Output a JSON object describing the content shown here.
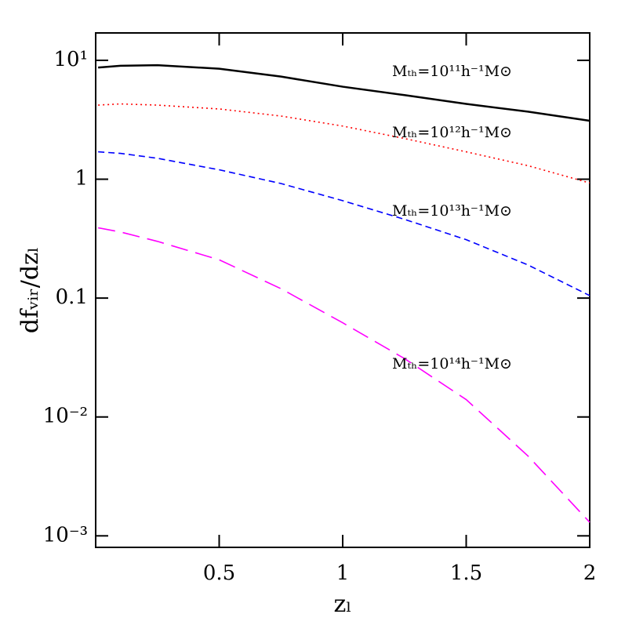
{
  "chart_data": {
    "type": "line",
    "xlabel": "zₗ",
    "ylabel": "dfᵥᵢᵣ/dzₗ",
    "x": [
      0.01,
      0.1,
      0.25,
      0.5,
      0.75,
      1,
      1.25,
      1.5,
      1.75,
      2
    ],
    "series": [
      {
        "name": "Mₜₕ=10¹¹h⁻¹M⊙",
        "color": "#000000",
        "style": "solid",
        "values": [
          8.7,
          9.0,
          9.1,
          8.5,
          7.3,
          6.0,
          5.1,
          4.3,
          3.7,
          3.1
        ]
      },
      {
        "name": "Mₜₕ=10¹²h⁻¹M⊙",
        "color": "#ff0000",
        "style": "dotted",
        "values": [
          4.2,
          4.3,
          4.2,
          3.9,
          3.4,
          2.8,
          2.2,
          1.7,
          1.3,
          0.93
        ]
      },
      {
        "name": "Mₜₕ=10¹³h⁻¹M⊙",
        "color": "#0000ff",
        "style": "dashed",
        "values": [
          1.7,
          1.65,
          1.5,
          1.2,
          0.92,
          0.66,
          0.46,
          0.31,
          0.19,
          0.105
        ]
      },
      {
        "name": "Mₜₕ=10¹⁴h⁻¹M⊙",
        "color": "#ff00ff",
        "style": "longdash",
        "values": [
          0.39,
          0.36,
          0.3,
          0.21,
          0.12,
          0.062,
          0.031,
          0.014,
          0.0047,
          0.0013
        ]
      }
    ],
    "xlim": [
      0,
      2
    ],
    "xticks": [
      0.5,
      1,
      1.5,
      2
    ],
    "ylim": [
      0.0008,
      17
    ],
    "ylog": true,
    "yticks": [
      {
        "value": 10,
        "label": "10¹"
      },
      1,
      0.1,
      {
        "value": 0.01,
        "label": "10⁻²"
      },
      {
        "value": 0.001,
        "label": "10⁻³"
      }
    ]
  }
}
